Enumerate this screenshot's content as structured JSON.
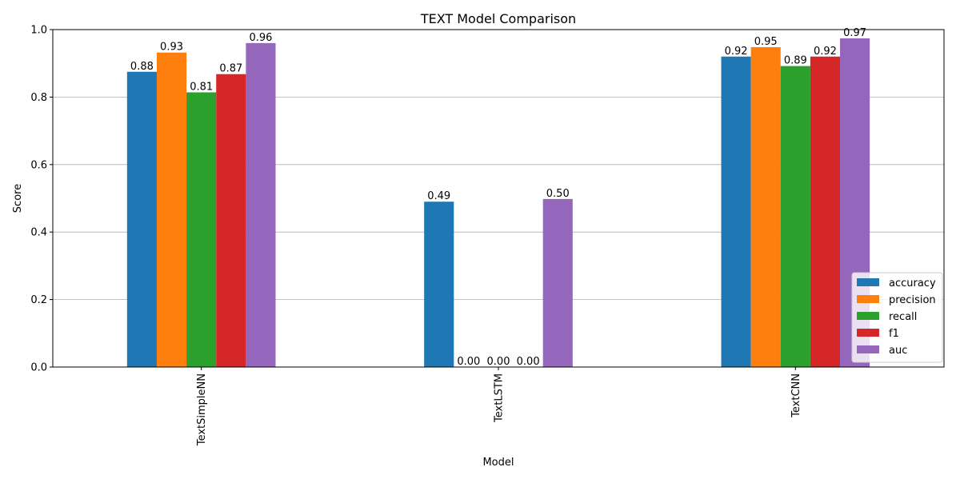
{
  "chart_data": {
    "type": "bar",
    "title": "TEXT Model Comparison",
    "xlabel": "Model",
    "ylabel": "Score",
    "ylim": [
      0,
      1.0
    ],
    "yticks": [
      "0.0",
      "0.2",
      "0.4",
      "0.6",
      "0.8",
      "1.0"
    ],
    "grid": "y-major",
    "legend_position": "lower-right",
    "categories": [
      "TextSimpleNN",
      "TextLSTM",
      "TextCNN"
    ],
    "series": [
      {
        "name": "accuracy",
        "color": "#1f77b4",
        "values": [
          0.875,
          0.49,
          0.92
        ],
        "labels": [
          "0.88",
          "0.49",
          "0.92"
        ]
      },
      {
        "name": "precision",
        "color": "#ff7f0e",
        "values": [
          0.932,
          0.0,
          0.948
        ],
        "labels": [
          "0.93",
          "0.00",
          "0.95"
        ]
      },
      {
        "name": "recall",
        "color": "#2ca02c",
        "values": [
          0.814,
          0.0,
          0.892
        ],
        "labels": [
          "0.81",
          "0.00",
          "0.89"
        ]
      },
      {
        "name": "f1",
        "color": "#d62728",
        "values": [
          0.868,
          0.0,
          0.92
        ],
        "labels": [
          "0.87",
          "0.00",
          "0.92"
        ]
      },
      {
        "name": "auc",
        "color": "#9467bd",
        "values": [
          0.96,
          0.498,
          0.974
        ],
        "labels": [
          "0.96",
          "0.50",
          "0.97"
        ]
      }
    ]
  }
}
